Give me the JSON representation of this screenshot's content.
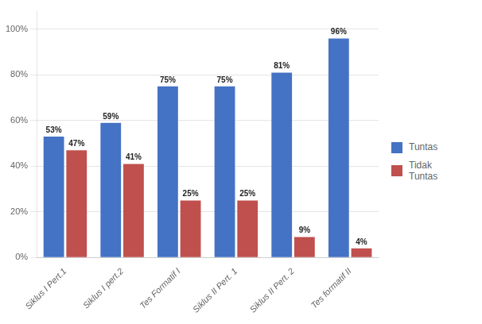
{
  "chart_data": {
    "type": "bar",
    "categories": [
      "Siklus I Pert.1",
      "Siklus I pert.2",
      "Tes Formatif I",
      "Siklus II Pert. 1",
      "Siklus II Pert. 2",
      "Tes formatif II"
    ],
    "series": [
      {
        "name": "Tuntas",
        "color": "#4472C4",
        "values": [
          53,
          59,
          75,
          75,
          81,
          96
        ],
        "value_labels": [
          "53%",
          "59%",
          "75%",
          "75%",
          "81%",
          "96%"
        ]
      },
      {
        "name": "Tidak\nTuntas",
        "color": "#C0504D",
        "values": [
          47,
          41,
          25,
          25,
          9,
          4
        ],
        "value_labels": [
          "47%",
          "41%",
          "25%",
          "25%",
          "9%",
          "4%"
        ]
      }
    ],
    "ylim": [
      0,
      108
    ],
    "yticks": [
      {
        "value": 0,
        "label": "0%"
      },
      {
        "value": 20,
        "label": "20%"
      },
      {
        "value": 40,
        "label": "40%"
      },
      {
        "value": 60,
        "label": "60%"
      },
      {
        "value": 80,
        "label": "80%"
      },
      {
        "value": 100,
        "label": "100%"
      }
    ],
    "grid": true,
    "legend": "right",
    "data_labels": true
  }
}
